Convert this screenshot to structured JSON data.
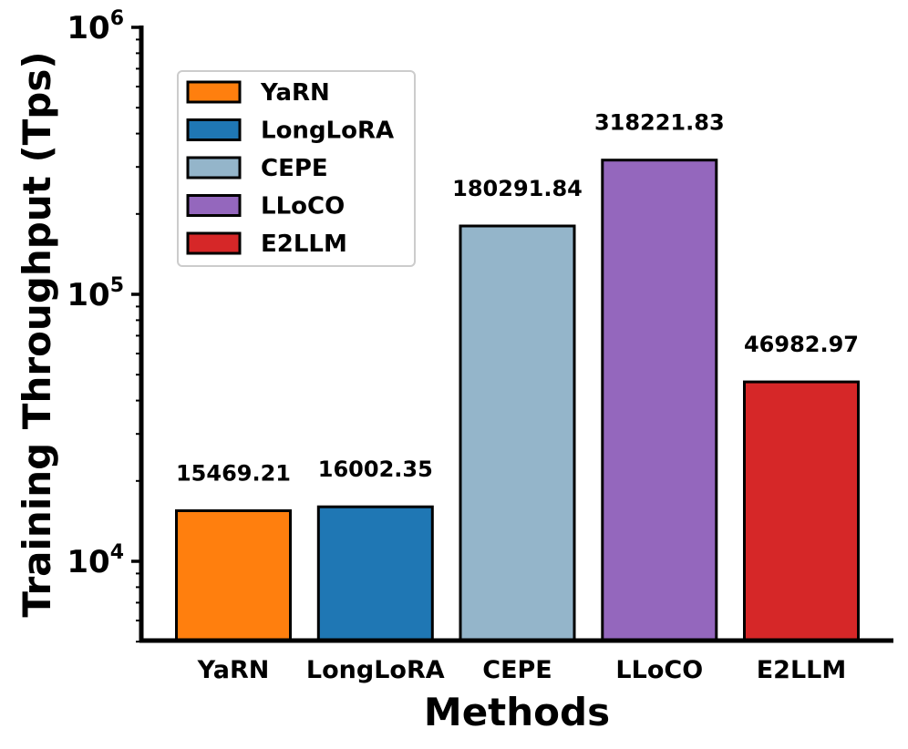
{
  "chart_data": {
    "type": "bar",
    "title": "",
    "xlabel": "Methods",
    "ylabel": "Training Throughput (Tps)",
    "yscale": "log",
    "ylim": [
      5000,
      1000000
    ],
    "categories": [
      "YaRN",
      "LongLoRA",
      "CEPE",
      "LLoCO",
      "E2LLM"
    ],
    "values": [
      15469.21,
      16002.35,
      180291.84,
      318221.83,
      46982.97
    ],
    "value_labels": [
      "15469.21",
      "16002.35",
      "180291.84",
      "318221.83",
      "46982.97"
    ],
    "colors": [
      "#ff7f0e",
      "#1f77b4",
      "#94b5ca",
      "#9467bd",
      "#d62728"
    ],
    "y_ticks": [
      {
        "base": "10",
        "exp": "4",
        "value": 10000
      },
      {
        "base": "10",
        "exp": "5",
        "value": 100000
      },
      {
        "base": "10",
        "exp": "6",
        "value": 1000000
      }
    ],
    "grid": false,
    "legend": {
      "position": "top-left",
      "entries": [
        "YaRN",
        "LongLoRA",
        "CEPE",
        "LLoCO",
        "E2LLM"
      ]
    }
  }
}
